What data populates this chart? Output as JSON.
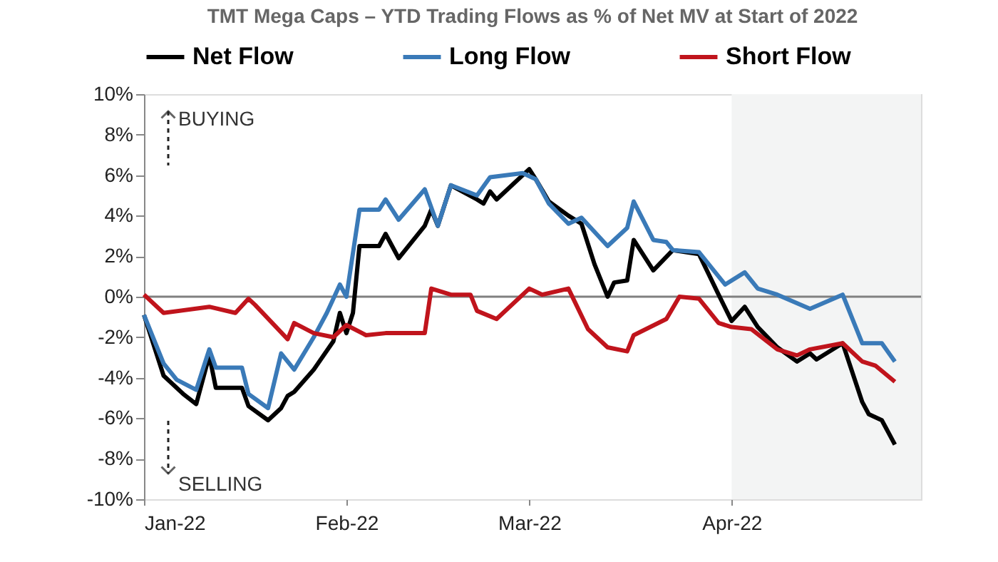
{
  "chart_data": {
    "type": "line",
    "title": "TMT Mega Caps – YTD Trading Flows as % of Net MV at Start of 2022",
    "series": [
      {
        "name": "Net Flow",
        "color": "#000000",
        "x": [
          "2022-01-01",
          "2022-01-04",
          "2022-01-07",
          "2022-01-09",
          "2022-01-11",
          "2022-01-12",
          "2022-01-16",
          "2022-01-17",
          "2022-01-20",
          "2022-01-22",
          "2022-01-23",
          "2022-01-24",
          "2022-01-27",
          "2022-01-30",
          "2022-01-31",
          "2022-02-01",
          "2022-02-02",
          "2022-02-03",
          "2022-02-06",
          "2022-02-07",
          "2022-02-09",
          "2022-02-13",
          "2022-02-14",
          "2022-02-15",
          "2022-02-17",
          "2022-02-21",
          "2022-02-22",
          "2022-02-23",
          "2022-02-24",
          "2022-03-01",
          "2022-03-02",
          "2022-03-04",
          "2022-03-07",
          "2022-03-09",
          "2022-03-11",
          "2022-03-13",
          "2022-03-14",
          "2022-03-16",
          "2022-03-17",
          "2022-03-20",
          "2022-03-23",
          "2022-03-27",
          "2022-03-30",
          "2022-04-01",
          "2022-04-03",
          "2022-04-05",
          "2022-04-08",
          "2022-04-11",
          "2022-04-13",
          "2022-04-14",
          "2022-04-18",
          "2022-04-21",
          "2022-04-22",
          "2022-04-24",
          "2022-04-26"
        ],
        "values": [
          -0.9,
          -3.9,
          -4.8,
          -5.3,
          -2.9,
          -4.5,
          -4.5,
          -5.4,
          -6.1,
          -5.5,
          -4.9,
          -4.7,
          -3.6,
          -2.2,
          -0.8,
          -1.8,
          -0.8,
          2.5,
          2.5,
          3.1,
          1.9,
          3.5,
          4.3,
          3.5,
          5.5,
          4.8,
          4.6,
          5.2,
          4.8,
          6.3,
          5.8,
          4.7,
          4.0,
          3.6,
          1.6,
          0.0,
          0.7,
          0.8,
          2.8,
          1.3,
          2.3,
          2.1,
          0.1,
          -1.2,
          -0.5,
          -1.5,
          -2.5,
          -3.2,
          -2.8,
          -3.1,
          -2.3,
          -5.2,
          -5.8,
          -6.1,
          -7.3
        ]
      },
      {
        "name": "Long Flow",
        "color": "#3a7ab8",
        "x": [
          "2022-01-01",
          "2022-01-04",
          "2022-01-06",
          "2022-01-09",
          "2022-01-11",
          "2022-01-12",
          "2022-01-16",
          "2022-01-17",
          "2022-01-20",
          "2022-01-22",
          "2022-01-24",
          "2022-01-27",
          "2022-01-29",
          "2022-01-31",
          "2022-02-01",
          "2022-02-03",
          "2022-02-06",
          "2022-02-07",
          "2022-02-09",
          "2022-02-13",
          "2022-02-15",
          "2022-02-17",
          "2022-02-21",
          "2022-02-23",
          "2022-02-28",
          "2022-03-02",
          "2022-03-04",
          "2022-03-07",
          "2022-03-09",
          "2022-03-13",
          "2022-03-16",
          "2022-03-17",
          "2022-03-20",
          "2022-03-22",
          "2022-03-23",
          "2022-03-27",
          "2022-03-31",
          "2022-04-03",
          "2022-04-05",
          "2022-04-08",
          "2022-04-13",
          "2022-04-18",
          "2022-04-21",
          "2022-04-24",
          "2022-04-26"
        ],
        "values": [
          -0.9,
          -3.3,
          -4.1,
          -4.6,
          -2.6,
          -3.5,
          -3.5,
          -4.8,
          -5.5,
          -2.8,
          -3.6,
          -2.0,
          -0.8,
          0.6,
          0.0,
          4.3,
          4.3,
          4.8,
          3.8,
          5.3,
          3.5,
          5.5,
          5.0,
          5.9,
          6.1,
          5.8,
          4.6,
          3.6,
          3.9,
          2.5,
          3.4,
          4.7,
          2.8,
          2.7,
          2.3,
          2.2,
          0.6,
          1.2,
          0.4,
          0.1,
          -0.6,
          0.1,
          -2.3,
          -2.3,
          -3.2
        ]
      },
      {
        "name": "Short Flow",
        "color": "#c0141c",
        "x": [
          "2022-01-01",
          "2022-01-04",
          "2022-01-11",
          "2022-01-15",
          "2022-01-17",
          "2022-01-18",
          "2022-01-23",
          "2022-01-24",
          "2022-01-27",
          "2022-01-30",
          "2022-02-01",
          "2022-02-04",
          "2022-02-07",
          "2022-02-13",
          "2022-02-14",
          "2022-02-17",
          "2022-02-20",
          "2022-02-21",
          "2022-02-24",
          "2022-03-01",
          "2022-03-03",
          "2022-03-07",
          "2022-03-10",
          "2022-03-13",
          "2022-03-16",
          "2022-03-17",
          "2022-03-22",
          "2022-03-24",
          "2022-03-27",
          "2022-03-30",
          "2022-04-01",
          "2022-04-04",
          "2022-04-08",
          "2022-04-11",
          "2022-04-13",
          "2022-04-18",
          "2022-04-21",
          "2022-04-23",
          "2022-04-26"
        ],
        "values": [
          0.1,
          -0.8,
          -0.5,
          -0.8,
          -0.1,
          -0.4,
          -2.1,
          -1.3,
          -1.8,
          -2.0,
          -1.4,
          -1.9,
          -1.8,
          -1.8,
          0.4,
          0.1,
          0.1,
          -0.7,
          -1.1,
          0.4,
          0.1,
          0.4,
          -1.6,
          -2.5,
          -2.7,
          -1.9,
          -1.1,
          0.0,
          -0.1,
          -1.3,
          -1.5,
          -1.6,
          -2.6,
          -2.9,
          -2.6,
          -2.3,
          -3.2,
          -3.4,
          -4.2
        ]
      }
    ],
    "xlim": [
      "2022-01-01",
      "2022-04-30"
    ],
    "xticks": [
      {
        "value": "2022-01-01",
        "label": "Jan-22"
      },
      {
        "value": "2022-02-01",
        "label": "Feb-22"
      },
      {
        "value": "2022-03-01",
        "label": "Mar-22"
      },
      {
        "value": "2022-04-01",
        "label": "Apr-22"
      }
    ],
    "ylim": [
      -10,
      10
    ],
    "yticks": [
      {
        "value": -10,
        "label": "-10%"
      },
      {
        "value": -8,
        "label": "-8%"
      },
      {
        "value": -6,
        "label": "-6%"
      },
      {
        "value": -4,
        "label": "-4%"
      },
      {
        "value": -2,
        "label": "-2%"
      },
      {
        "value": 0,
        "label": "0%"
      },
      {
        "value": 2,
        "label": "2%"
      },
      {
        "value": 4,
        "label": "4%"
      },
      {
        "value": 6,
        "label": "6%"
      },
      {
        "value": 8,
        "label": "8%"
      },
      {
        "value": 10,
        "label": "10%"
      }
    ],
    "ref_lines": [
      {
        "axis": "y",
        "value": 0,
        "color": "#808080"
      }
    ],
    "bands": [
      {
        "axis": "x",
        "from": "2022-04-01",
        "to": "2022-04-30",
        "color": "#f3f4f4"
      }
    ],
    "annotations": [
      "BUYING",
      "SELLING"
    ],
    "legend": "top",
    "grid": false,
    "marker": "none",
    "line_style": "solid"
  }
}
